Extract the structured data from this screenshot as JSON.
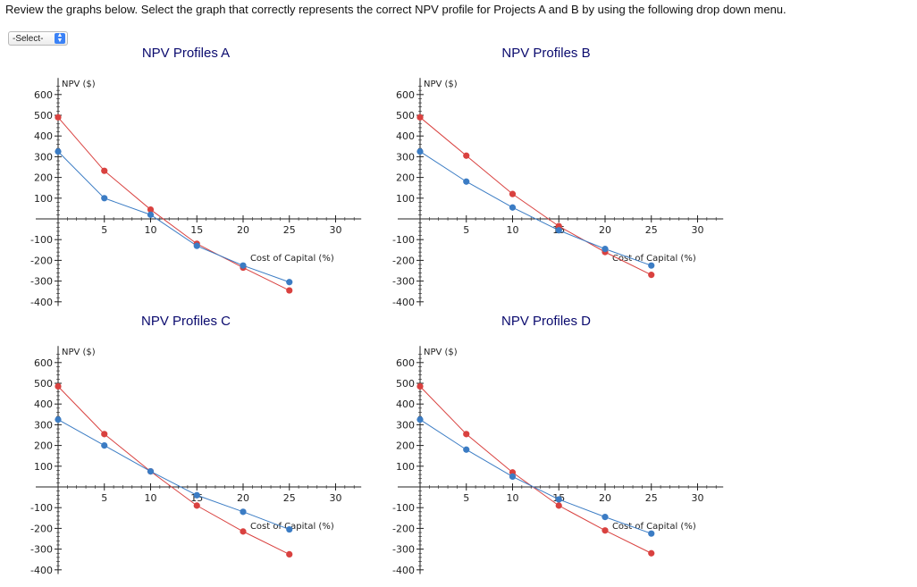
{
  "instruction": "Review the graphs below. Select the graph that correctly represents the correct NPV profile for Projects A and B by using the following drop down menu.",
  "dropdown": {
    "selected": "-Select-"
  },
  "colors": {
    "project_a": "#d9413f",
    "project_b": "#3b7cc4",
    "title": "#0a0a6e"
  },
  "chart_data": [
    {
      "type": "line",
      "title": "NPV Profiles A",
      "ylabel": "NPV ($)",
      "xlabel": "Cost of Capital (%)",
      "xlim": [
        0,
        32
      ],
      "ylim": [
        -420,
        700
      ],
      "x_ticks": [
        5,
        10,
        15,
        20,
        25,
        30
      ],
      "y_ticks": [
        600,
        500,
        400,
        300,
        200,
        100,
        -100,
        -200,
        -300,
        -400
      ],
      "series": [
        {
          "name": "Project A",
          "color": "#d9413f",
          "x": [
            0,
            5,
            10,
            15,
            20,
            25
          ],
          "values": [
            490,
            232,
            45,
            -120,
            -235,
            -345
          ]
        },
        {
          "name": "Project B",
          "color": "#3b7cc4",
          "x": [
            0,
            5,
            10,
            15,
            20,
            25
          ],
          "values": [
            325,
            100,
            20,
            -130,
            -225,
            -305
          ]
        }
      ]
    },
    {
      "type": "line",
      "title": "NPV Profiles B",
      "ylabel": "NPV ($)",
      "xlabel": "Cost of Capital (%)",
      "xlim": [
        0,
        32
      ],
      "ylim": [
        -420,
        700
      ],
      "x_ticks": [
        5,
        10,
        15,
        20,
        25,
        30
      ],
      "y_ticks": [
        600,
        500,
        400,
        300,
        200,
        100,
        -100,
        -200,
        -300,
        -400
      ],
      "series": [
        {
          "name": "Project A",
          "color": "#d9413f",
          "x": [
            0,
            5,
            10,
            15,
            20,
            25
          ],
          "values": [
            490,
            305,
            120,
            -35,
            -160,
            -270
          ]
        },
        {
          "name": "Project B",
          "color": "#3b7cc4",
          "x": [
            0,
            5,
            10,
            15,
            20,
            25
          ],
          "values": [
            325,
            180,
            55,
            -55,
            -145,
            -225
          ]
        }
      ]
    },
    {
      "type": "line",
      "title": "NPV Profiles C",
      "ylabel": "NPV ($)",
      "xlabel": "Cost of Capital (%)",
      "xlim": [
        0,
        32
      ],
      "ylim": [
        -420,
        700
      ],
      "x_ticks": [
        5,
        10,
        15,
        20,
        25,
        30
      ],
      "y_ticks": [
        600,
        500,
        400,
        300,
        200,
        100,
        -100,
        -200,
        -300,
        -400
      ],
      "series": [
        {
          "name": "Project A",
          "color": "#d9413f",
          "x": [
            0,
            5,
            10,
            15,
            20,
            25
          ],
          "values": [
            485,
            255,
            75,
            -90,
            -215,
            -325
          ]
        },
        {
          "name": "Project B",
          "color": "#3b7cc4",
          "x": [
            0,
            5,
            10,
            15,
            20,
            25
          ],
          "values": [
            325,
            200,
            75,
            -40,
            -120,
            -205
          ]
        }
      ]
    },
    {
      "type": "line",
      "title": "NPV Profiles D",
      "ylabel": "NPV ($)",
      "xlabel": "Cost of Capital (%)",
      "xlim": [
        0,
        32
      ],
      "ylim": [
        -420,
        700
      ],
      "x_ticks": [
        5,
        10,
        15,
        20,
        25,
        30
      ],
      "y_ticks": [
        600,
        500,
        400,
        300,
        200,
        100,
        -100,
        -200,
        -300,
        -400
      ],
      "series": [
        {
          "name": "Project A",
          "color": "#d9413f",
          "x": [
            0,
            5,
            10,
            15,
            20,
            25
          ],
          "values": [
            485,
            255,
            70,
            -90,
            -210,
            -320
          ]
        },
        {
          "name": "Project B",
          "color": "#3b7cc4",
          "x": [
            0,
            5,
            10,
            15,
            20,
            25
          ],
          "values": [
            325,
            180,
            50,
            -60,
            -145,
            -225
          ]
        }
      ]
    }
  ]
}
